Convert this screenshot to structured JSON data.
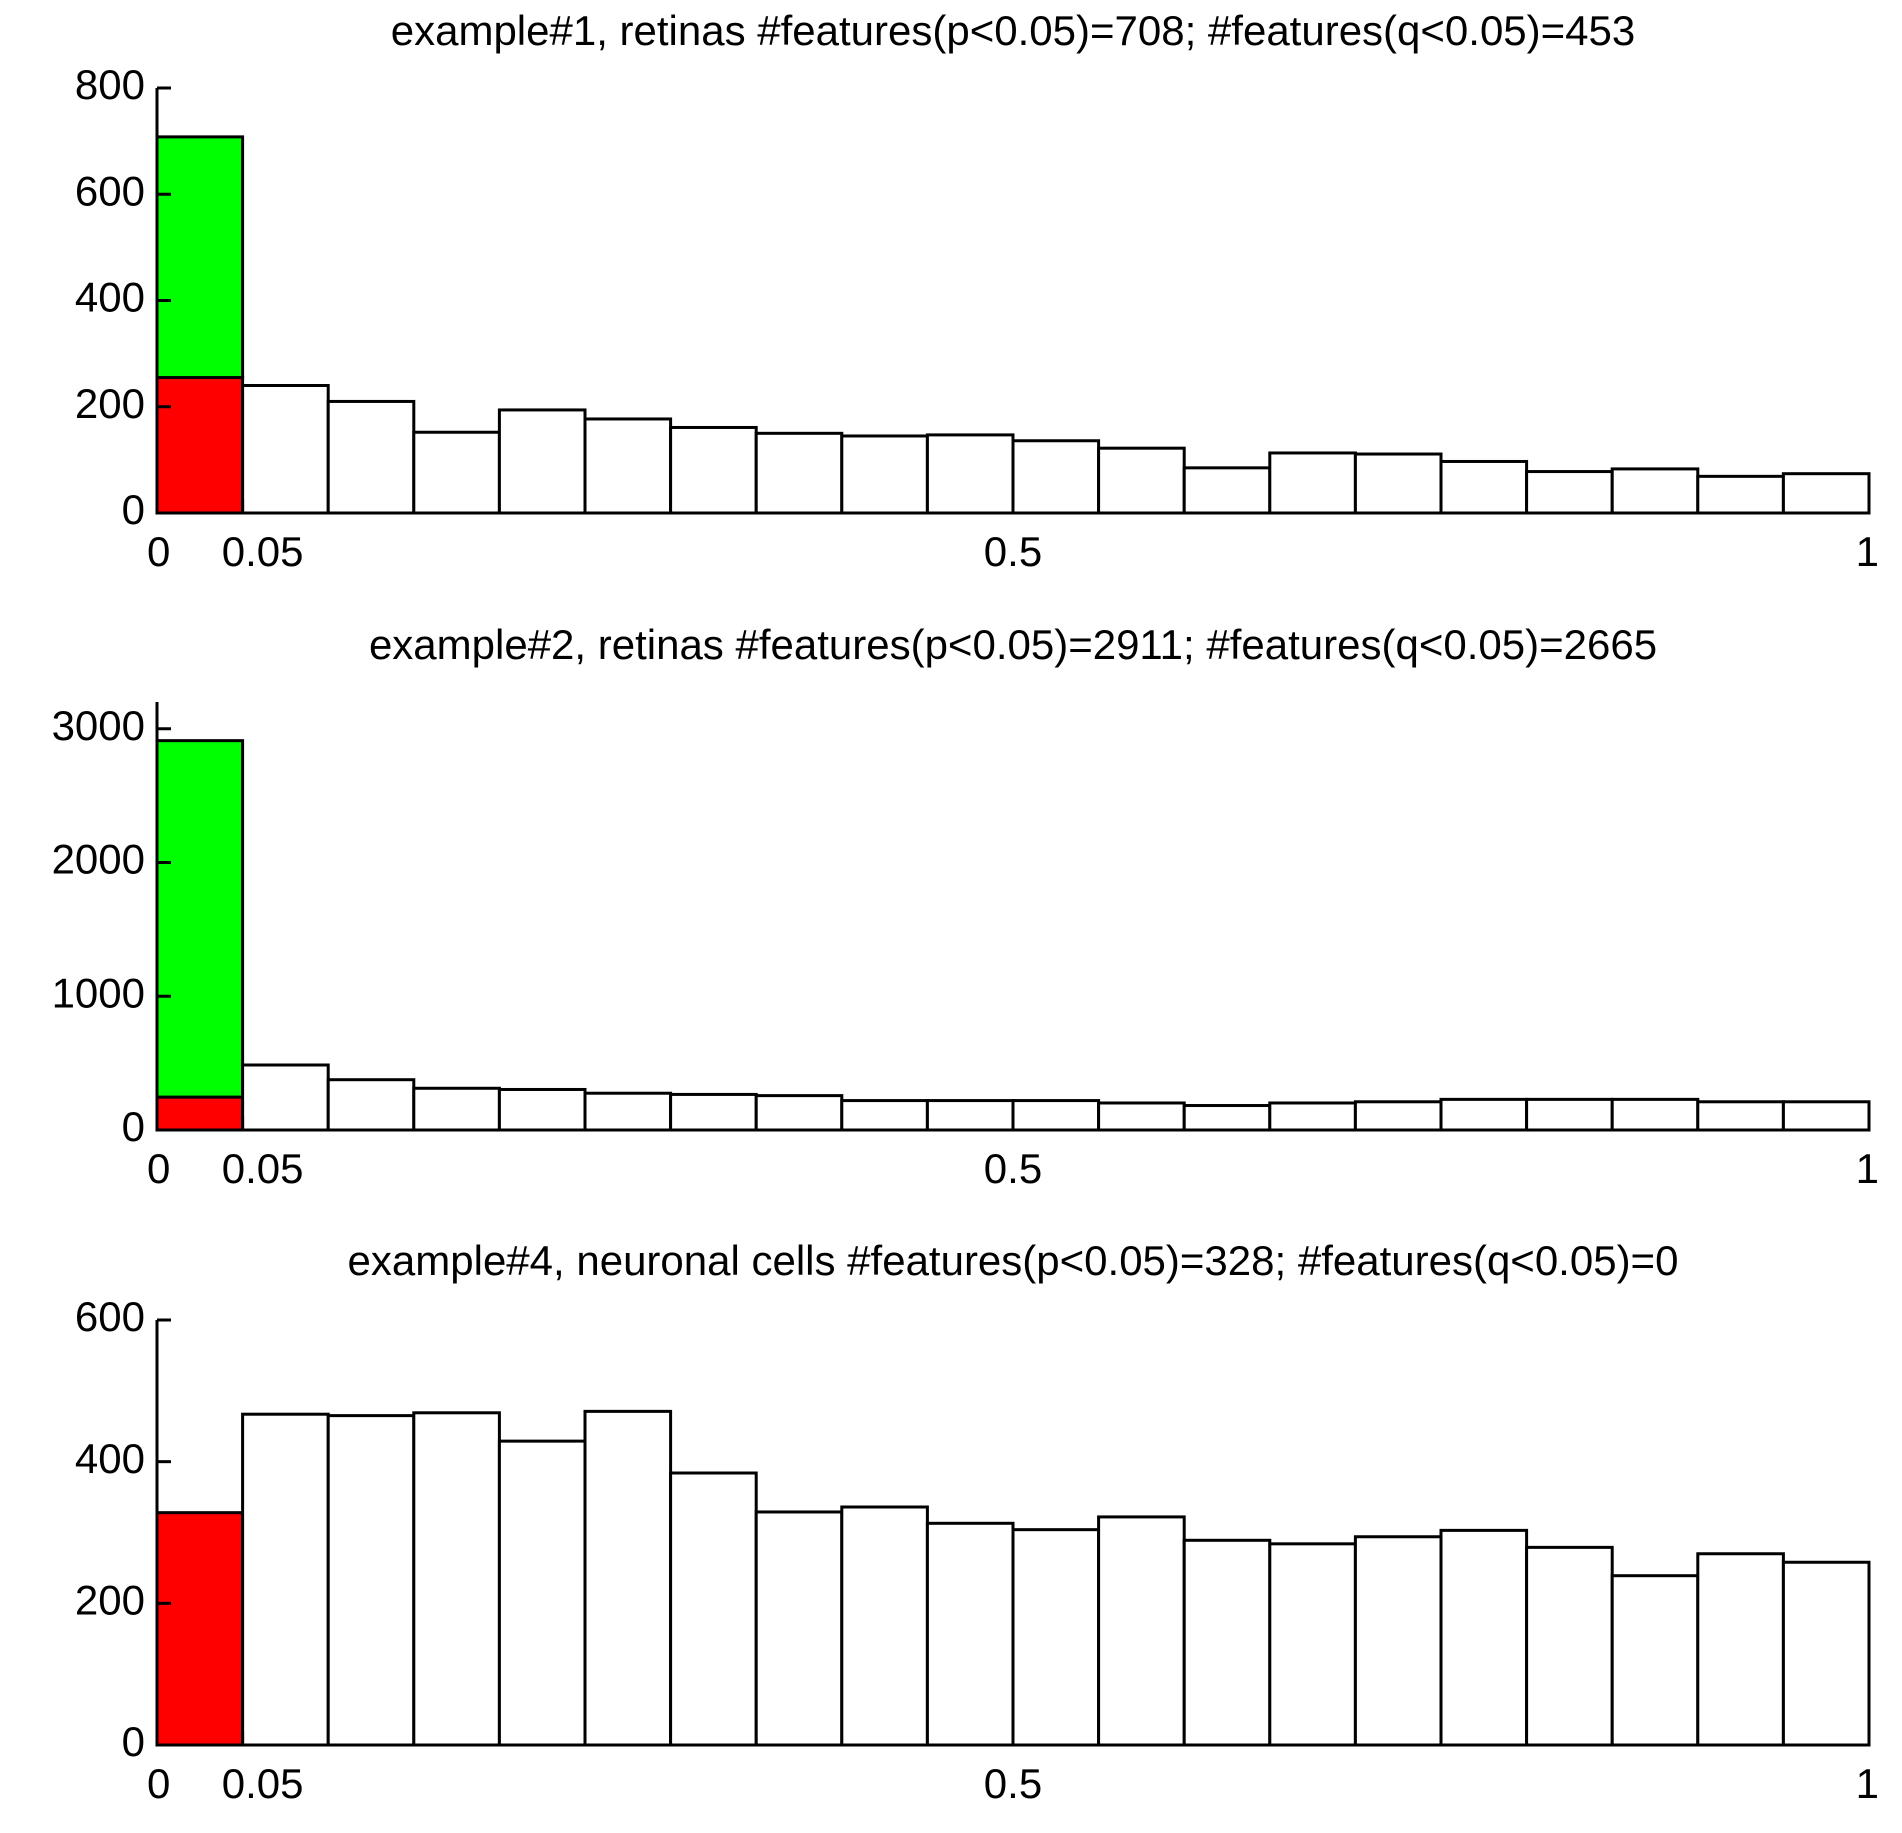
{
  "chart_data": [
    {
      "type": "histogram",
      "title": "example#1, retinas  #features(p<0.05)=708;  #features(q<0.05)=453",
      "bins": [
        0,
        0.05,
        0.1,
        0.15,
        0.2,
        0.25,
        0.3,
        0.35,
        0.4,
        0.45,
        0.5,
        0.55,
        0.6,
        0.65,
        0.7,
        0.75,
        0.8,
        0.85,
        0.9,
        0.95,
        1
      ],
      "series": [
        {
          "color": "#ff0000",
          "values": [
            255,
            null,
            null,
            null,
            null,
            null,
            null,
            null,
            null,
            null,
            null,
            null,
            null,
            null,
            null,
            null,
            null,
            null,
            null,
            null
          ]
        },
        {
          "color": "#00ff00",
          "values": [
            453,
            null,
            null,
            null,
            null,
            null,
            null,
            null,
            null,
            null,
            null,
            null,
            null,
            null,
            null,
            null,
            null,
            null,
            null,
            null
          ]
        },
        {
          "color": "#ffffff",
          "values": [
            null,
            240,
            210,
            152,
            194,
            177,
            161,
            150,
            145,
            147,
            136,
            122,
            85,
            113,
            111,
            97,
            78,
            83,
            69,
            74
          ]
        }
      ],
      "xlim": [
        0,
        1
      ],
      "xticks": [
        0,
        0.05,
        0.5,
        1
      ],
      "ylim": [
        0,
        800
      ],
      "yticks": [
        0,
        200,
        400,
        600,
        800
      ]
    },
    {
      "type": "histogram",
      "title": "example#2, retinas  #features(p<0.05)=2911; #features(q<0.05)=2665",
      "bins": [
        0,
        0.05,
        0.1,
        0.15,
        0.2,
        0.25,
        0.3,
        0.35,
        0.4,
        0.45,
        0.5,
        0.55,
        0.6,
        0.65,
        0.7,
        0.75,
        0.8,
        0.85,
        0.9,
        0.95,
        1
      ],
      "series": [
        {
          "color": "#ff0000",
          "values": [
            246,
            null,
            null,
            null,
            null,
            null,
            null,
            null,
            null,
            null,
            null,
            null,
            null,
            null,
            null,
            null,
            null,
            null,
            null,
            null
          ]
        },
        {
          "color": "#00ff00",
          "values": [
            2665,
            null,
            null,
            null,
            null,
            null,
            null,
            null,
            null,
            null,
            null,
            null,
            null,
            null,
            null,
            null,
            null,
            null,
            null,
            null
          ]
        },
        {
          "color": "#ffffff",
          "values": [
            null,
            486,
            376,
            312,
            303,
            275,
            266,
            257,
            220,
            220,
            220,
            202,
            183,
            202,
            211,
            229,
            229,
            229,
            211,
            211
          ]
        }
      ],
      "xlim": [
        0,
        1
      ],
      "xticks": [
        0,
        0.05,
        0.5,
        1
      ],
      "ylim": [
        0,
        3200
      ],
      "yticks": [
        0,
        1000,
        2000,
        3000
      ]
    },
    {
      "type": "histogram",
      "title": "example#4, neuronal cells  #features(p<0.05)=328; #features(q<0.05)=0",
      "bins": [
        0,
        0.05,
        0.1,
        0.15,
        0.2,
        0.25,
        0.3,
        0.35,
        0.4,
        0.45,
        0.5,
        0.55,
        0.6,
        0.65,
        0.7,
        0.75,
        0.8,
        0.85,
        0.9,
        0.95,
        1
      ],
      "series": [
        {
          "color": "#ff0000",
          "values": [
            328,
            null,
            null,
            null,
            null,
            null,
            null,
            null,
            null,
            null,
            null,
            null,
            null,
            null,
            null,
            null,
            null,
            null,
            null,
            null
          ]
        },
        {
          "color": "#00ff00",
          "values": [
            0,
            null,
            null,
            null,
            null,
            null,
            null,
            null,
            null,
            null,
            null,
            null,
            null,
            null,
            null,
            null,
            null,
            null,
            null,
            null
          ]
        },
        {
          "color": "#ffffff",
          "values": [
            null,
            467,
            465,
            469,
            429,
            471,
            384,
            329,
            336,
            313,
            304,
            322,
            289,
            284,
            294,
            303,
            279,
            239,
            270,
            258
          ]
        }
      ],
      "xlim": [
        0,
        1
      ],
      "xticks": [
        0,
        0.05,
        0.5,
        1
      ],
      "ylim": [
        0,
        600
      ],
      "yticks": [
        0,
        200,
        400,
        600
      ]
    }
  ]
}
